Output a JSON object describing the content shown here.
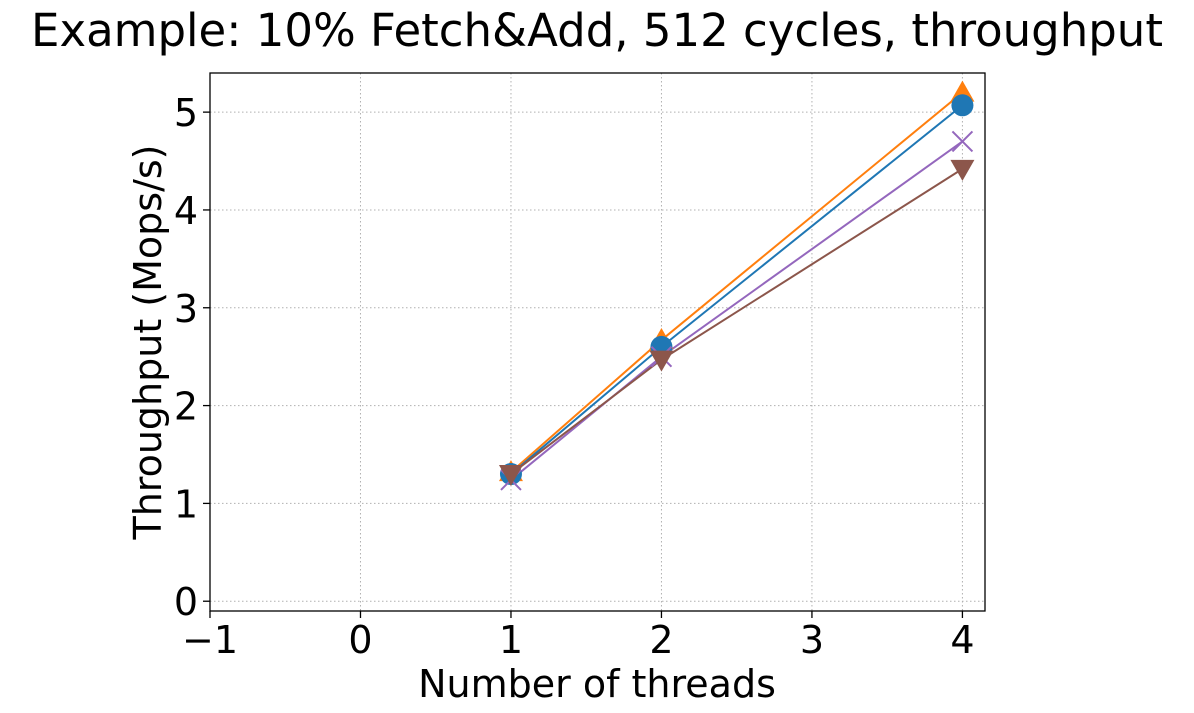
{
  "chart_data": {
    "type": "line",
    "title": "Example: 10% Fetch&Add, 512 cycles, throughput",
    "xlabel": "Number of threads",
    "ylabel": "Throughput (Mops/s)",
    "xlim": [
      -1,
      4.15
    ],
    "ylim": [
      -0.1,
      5.4
    ],
    "x_ticks": [
      -1,
      0,
      1,
      2,
      3,
      4
    ],
    "x_tick_labels": [
      "−1",
      "0",
      "1",
      "2",
      "3",
      "4"
    ],
    "y_ticks": [
      0,
      1,
      2,
      3,
      4,
      5
    ],
    "y_tick_labels": [
      "0",
      "1",
      "2",
      "3",
      "4",
      "5"
    ],
    "x_tick_positions": [
      -1,
      0,
      1,
      2,
      3,
      4
    ],
    "grid": true,
    "legend": "none",
    "series": [
      {
        "color": "#ff7f0e",
        "marker": "triangle-up",
        "x": [
          1,
          2,
          4
        ],
        "y": [
          1.32,
          2.67,
          5.2
        ]
      },
      {
        "color": "#1f77b4",
        "marker": "circle",
        "x": [
          1,
          2,
          4
        ],
        "y": [
          1.3,
          2.6,
          5.07
        ]
      },
      {
        "color": "#9467bd",
        "marker": "x",
        "x": [
          1,
          2,
          4
        ],
        "y": [
          1.24,
          2.5,
          4.7
        ]
      },
      {
        "color": "#8c564b",
        "marker": "triangle-down",
        "x": [
          1,
          2,
          4
        ],
        "y": [
          1.3,
          2.47,
          4.42
        ]
      }
    ]
  }
}
